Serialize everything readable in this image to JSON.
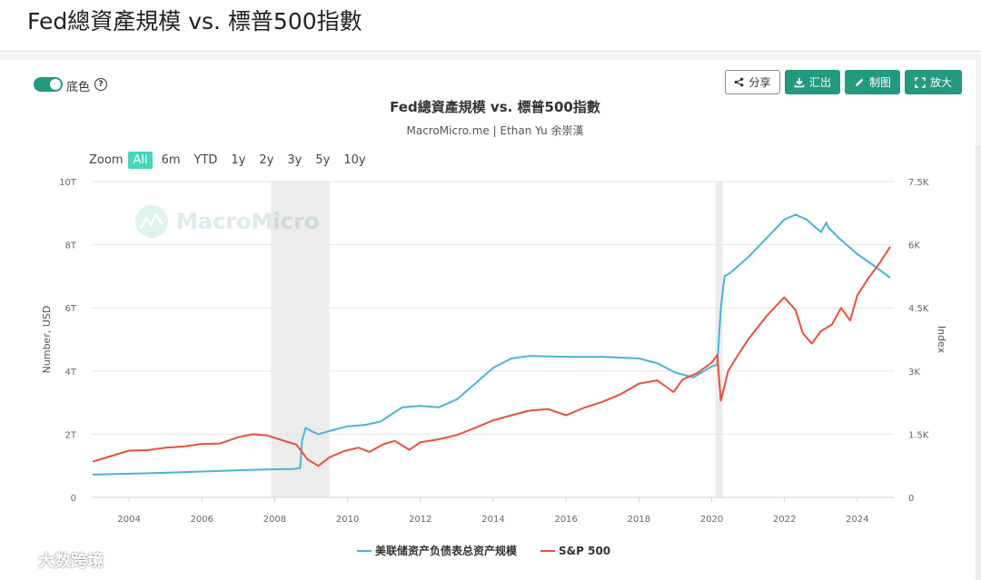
{
  "page": {
    "title": "Fed總資產規模 vs. 標普500指數"
  },
  "toolbar": {
    "background_toggle_label": "底色",
    "share_label": "分享",
    "export_label": "汇出",
    "draw_label": "制图",
    "expand_label": "放大",
    "accent_color": "#23997d"
  },
  "zoom": {
    "label": "Zoom",
    "options": [
      "All",
      "6m",
      "YTD",
      "1y",
      "2y",
      "3y",
      "5y",
      "10y"
    ],
    "selected": "All"
  },
  "watermark": {
    "text": "MacroMicro"
  },
  "bottom_logo": {
    "text": "大数跨境"
  },
  "chart_data": {
    "type": "line",
    "title": "Fed總資產規模 vs. 標普500指數",
    "subtitle": "MacroMicro.me | Ethan Yu 余崇漢",
    "xlabel": "",
    "x_range": [
      2003,
      2025
    ],
    "x_ticks": [
      "2004",
      "2006",
      "2008",
      "2010",
      "2012",
      "2014",
      "2016",
      "2018",
      "2020",
      "2022",
      "2024"
    ],
    "y_left": {
      "label": "Number, USD",
      "range": [
        0,
        10
      ],
      "tick_labels": [
        "0",
        "2T",
        "4T",
        "6T",
        "8T",
        "10T"
      ]
    },
    "y_right": {
      "label": "Index",
      "range": [
        0,
        7500
      ],
      "tick_labels": [
        "0",
        "1.5K",
        "3K",
        "4.5K",
        "6K",
        "7.5K"
      ]
    },
    "grid": true,
    "legend_position": "bottom",
    "recession_bands": [
      [
        2007.9,
        2009.5
      ],
      [
        2020.1,
        2020.3
      ]
    ],
    "series": [
      {
        "name": "美联储资产负债表总资产规模",
        "axis": "left",
        "color": "#4cb3d3",
        "x": [
          2003.0,
          2004.0,
          2005.0,
          2006.0,
          2007.0,
          2008.0,
          2008.5,
          2008.7,
          2008.75,
          2008.85,
          2009.0,
          2009.2,
          2009.5,
          2010.0,
          2010.5,
          2010.9,
          2011.3,
          2011.5,
          2012.0,
          2012.5,
          2013.0,
          2013.5,
          2014.0,
          2014.5,
          2015.0,
          2016.0,
          2017.0,
          2018.0,
          2018.5,
          2019.0,
          2019.5,
          2020.0,
          2020.15,
          2020.25,
          2020.35,
          2020.5,
          2021.0,
          2021.5,
          2022.0,
          2022.3,
          2022.6,
          2023.0,
          2023.15,
          2023.2,
          2023.5,
          2024.0,
          2024.5,
          2024.9
        ],
        "y": [
          0.72,
          0.75,
          0.78,
          0.82,
          0.86,
          0.89,
          0.9,
          0.93,
          1.8,
          2.2,
          2.1,
          2.0,
          2.1,
          2.25,
          2.3,
          2.4,
          2.7,
          2.85,
          2.9,
          2.85,
          3.1,
          3.6,
          4.1,
          4.4,
          4.48,
          4.45,
          4.45,
          4.4,
          4.25,
          3.95,
          3.8,
          4.15,
          4.2,
          6.0,
          7.0,
          7.1,
          7.6,
          8.2,
          8.8,
          8.95,
          8.8,
          8.4,
          8.7,
          8.55,
          8.2,
          7.7,
          7.3,
          6.95
        ]
      },
      {
        "name": "S&P 500",
        "axis": "right",
        "color": "#e8513b",
        "x": [
          2003.0,
          2003.5,
          2004.0,
          2004.5,
          2005.0,
          2005.5,
          2006.0,
          2006.5,
          2007.0,
          2007.4,
          2007.8,
          2008.2,
          2008.6,
          2008.9,
          2009.2,
          2009.5,
          2009.9,
          2010.3,
          2010.6,
          2011.0,
          2011.3,
          2011.7,
          2012.0,
          2012.5,
          2013.0,
          2013.5,
          2014.0,
          2014.5,
          2015.0,
          2015.5,
          2016.0,
          2016.5,
          2017.0,
          2017.5,
          2018.0,
          2018.5,
          2018.95,
          2019.2,
          2019.6,
          2020.0,
          2020.15,
          2020.25,
          2020.45,
          2020.7,
          2021.0,
          2021.5,
          2021.99,
          2022.3,
          2022.5,
          2022.75,
          2023.0,
          2023.3,
          2023.55,
          2023.8,
          2024.0,
          2024.3,
          2024.6,
          2024.9
        ],
        "y": [
          850,
          980,
          1110,
          1120,
          1180,
          1210,
          1270,
          1280,
          1430,
          1500,
          1470,
          1360,
          1250,
          900,
          750,
          950,
          1100,
          1180,
          1080,
          1270,
          1340,
          1130,
          1310,
          1380,
          1480,
          1650,
          1830,
          1950,
          2060,
          2100,
          1950,
          2130,
          2270,
          2450,
          2700,
          2780,
          2500,
          2800,
          2950,
          3200,
          3380,
          2300,
          3000,
          3350,
          3750,
          4300,
          4750,
          4450,
          3900,
          3650,
          3950,
          4100,
          4500,
          4200,
          4800,
          5200,
          5550,
          5950
        ]
      }
    ]
  }
}
